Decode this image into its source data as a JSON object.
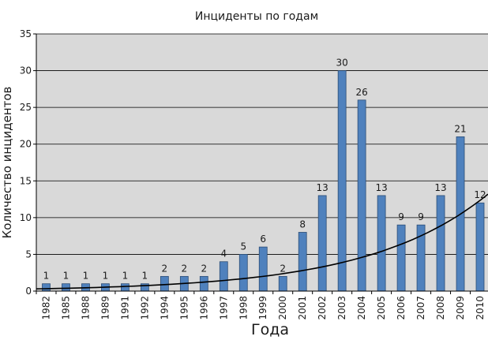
{
  "chart_data": {
    "type": "bar",
    "title": "Инциденты по годам",
    "xlabel": "Года",
    "ylabel": "Количество инцидентов",
    "categories": [
      "1982",
      "1985",
      "1988",
      "1989",
      "1991",
      "1992",
      "1994",
      "1995",
      "1996",
      "1997",
      "1998",
      "1999",
      "2000",
      "2001",
      "2002",
      "2003",
      "2004",
      "2005",
      "2006",
      "2007",
      "2008",
      "2009",
      "2010"
    ],
    "values": [
      1,
      1,
      1,
      1,
      1,
      1,
      2,
      2,
      2,
      4,
      5,
      6,
      2,
      8,
      13,
      30,
      26,
      13,
      9,
      9,
      13,
      21,
      12
    ],
    "data_labels": [
      "1",
      "1",
      "1",
      "1",
      "1",
      "1",
      "2",
      "2",
      "2",
      "4",
      "5",
      "6",
      "2",
      "8",
      "13",
      "30",
      "26",
      "13",
      "9",
      "9",
      "13",
      "21",
      "12"
    ],
    "ylim": [
      0,
      35
    ],
    "yticks": [
      0,
      5,
      10,
      15,
      20,
      25,
      30,
      35
    ],
    "trendline": {
      "type": "exponential",
      "start_value": 0.3,
      "end_value": 13.2
    },
    "grid": true,
    "legend": "none",
    "colors": {
      "bar": "#4f81bd",
      "bar_edge": "#2c4d75",
      "plot_bg": "#d9d9d9",
      "grid": "#000000",
      "trend": "#000000"
    }
  }
}
